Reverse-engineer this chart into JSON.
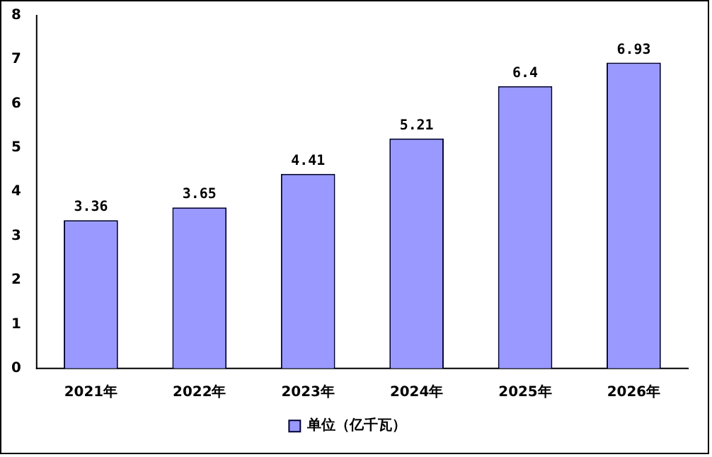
{
  "chart_data": {
    "type": "bar",
    "categories": [
      "2021年",
      "2022年",
      "2023年",
      "2024年",
      "2025年",
      "2026年"
    ],
    "series": [
      {
        "name": "单位（亿千瓦）",
        "color": "#9999ff",
        "values": [
          3.36,
          3.65,
          4.41,
          5.21,
          6.4,
          6.93
        ]
      }
    ],
    "ylim": [
      0,
      8
    ],
    "yticks": [
      0,
      1,
      2,
      3,
      4,
      5,
      6,
      7,
      8
    ],
    "data_labels": true,
    "legend": "bottom",
    "grid": false
  }
}
